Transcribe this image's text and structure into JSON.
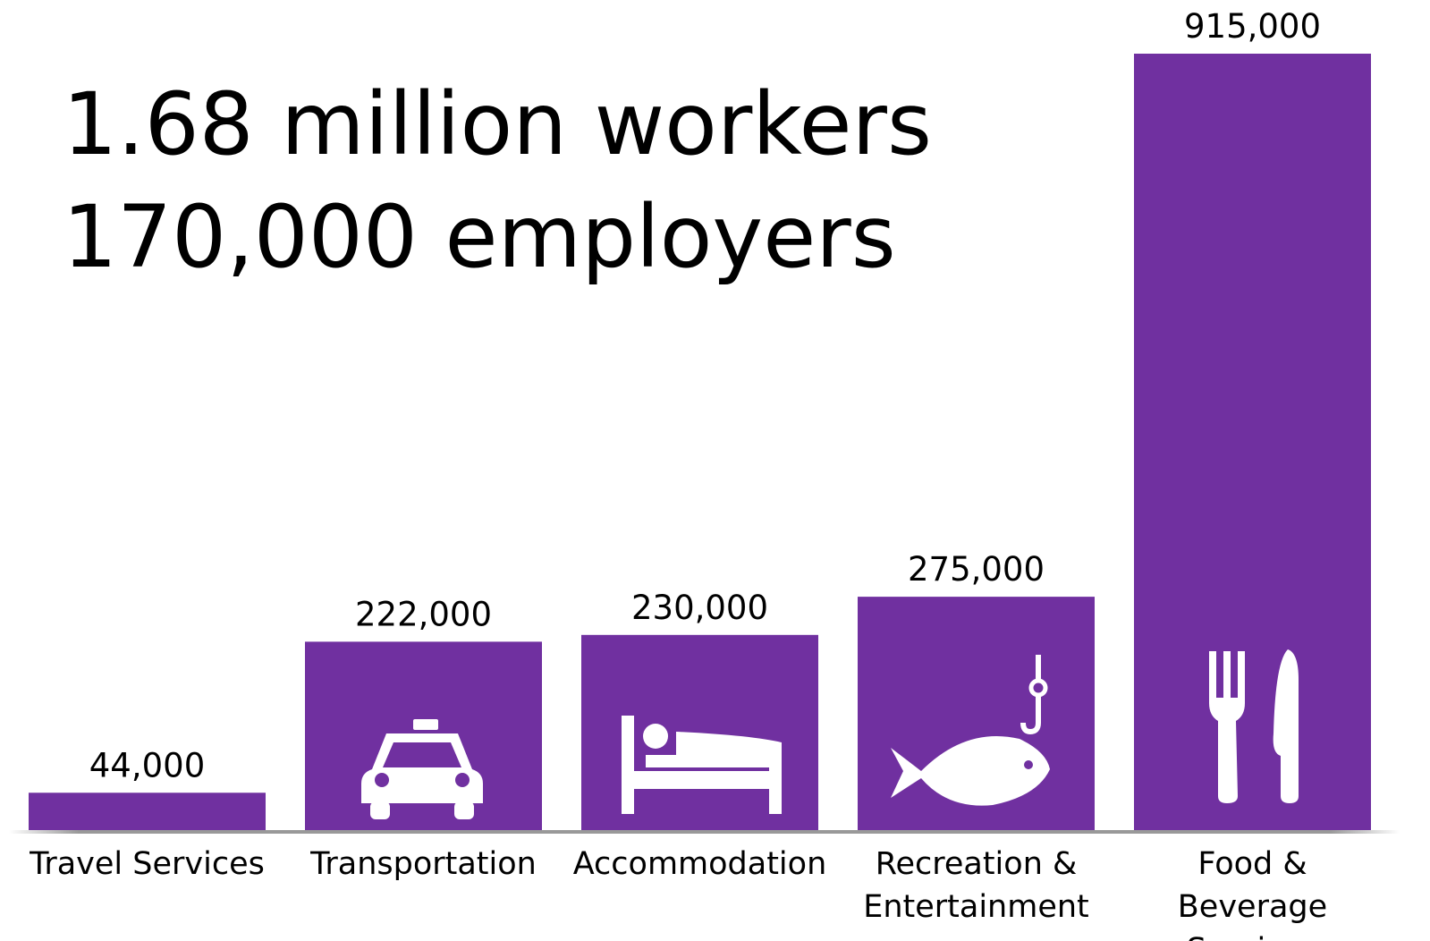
{
  "chart_data": {
    "type": "bar",
    "annotations": [
      "1.68 million workers",
      "170,000 employers"
    ],
    "categories": [
      "Travel Services",
      "Transportation",
      "Accommodation",
      "Recreation & Entertainment",
      "Food & Beverage Services"
    ],
    "values": [
      44000,
      222000,
      230000,
      275000,
      915000
    ],
    "value_labels": [
      "44,000",
      "222,000",
      "230,000",
      "275,000",
      "915,000"
    ],
    "color": "#7030a0",
    "ylim": [
      0,
      915000
    ]
  }
}
